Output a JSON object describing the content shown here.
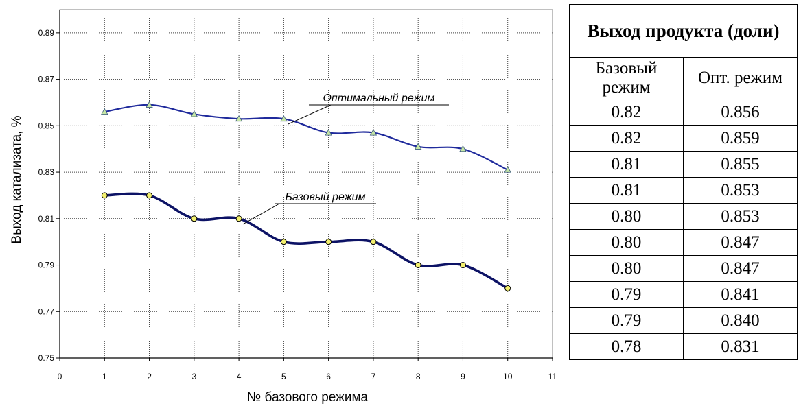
{
  "chart_data": {
    "type": "line",
    "xlabel": "№ базового режима",
    "ylabel": "Выход катализата, %",
    "xlim": [
      0,
      11
    ],
    "ylim": [
      0.75,
      0.9
    ],
    "xticks": [
      "0",
      "1",
      "2",
      "3",
      "4",
      "5",
      "6",
      "7",
      "8",
      "9",
      "10",
      "11"
    ],
    "yticks": [
      "0.75",
      "0.77",
      "0.79",
      "0.81",
      "0.83",
      "0.85",
      "0.87",
      "0.89"
    ],
    "grid": true,
    "x": [
      1,
      2,
      3,
      4,
      5,
      6,
      7,
      8,
      9,
      10
    ],
    "series": [
      {
        "name": "Оптимальный режим",
        "color": "#1f2a9c",
        "marker": "triangle",
        "marker_color": "#c6e6a6",
        "values": [
          0.856,
          0.859,
          0.855,
          0.853,
          0.853,
          0.847,
          0.847,
          0.841,
          0.84,
          0.831
        ]
      },
      {
        "name": "Базовый режим",
        "color": "#0c1265",
        "marker": "circle",
        "marker_color": "#f2ef6e",
        "values": [
          0.82,
          0.82,
          0.81,
          0.81,
          0.8,
          0.8,
          0.8,
          0.79,
          0.79,
          0.78
        ]
      }
    ],
    "annotations": [
      {
        "text": "Оптимальный режим",
        "series": 0,
        "point_index": 4
      },
      {
        "text": "Базовый режим",
        "series": 1,
        "point_index": 3
      }
    ]
  },
  "table": {
    "title": "Выход продукта (доли)",
    "col1": "Базовый режим",
    "col2": "Опт. режим",
    "rows": [
      [
        "0.82",
        "0.856"
      ],
      [
        "0.82",
        "0.859"
      ],
      [
        "0.81",
        "0.855"
      ],
      [
        "0.81",
        "0.853"
      ],
      [
        "0.80",
        "0.853"
      ],
      [
        "0.80",
        "0.847"
      ],
      [
        "0.80",
        "0.847"
      ],
      [
        "0.79",
        "0.841"
      ],
      [
        "0.79",
        "0.840"
      ],
      [
        "0.78",
        "0.831"
      ]
    ]
  }
}
